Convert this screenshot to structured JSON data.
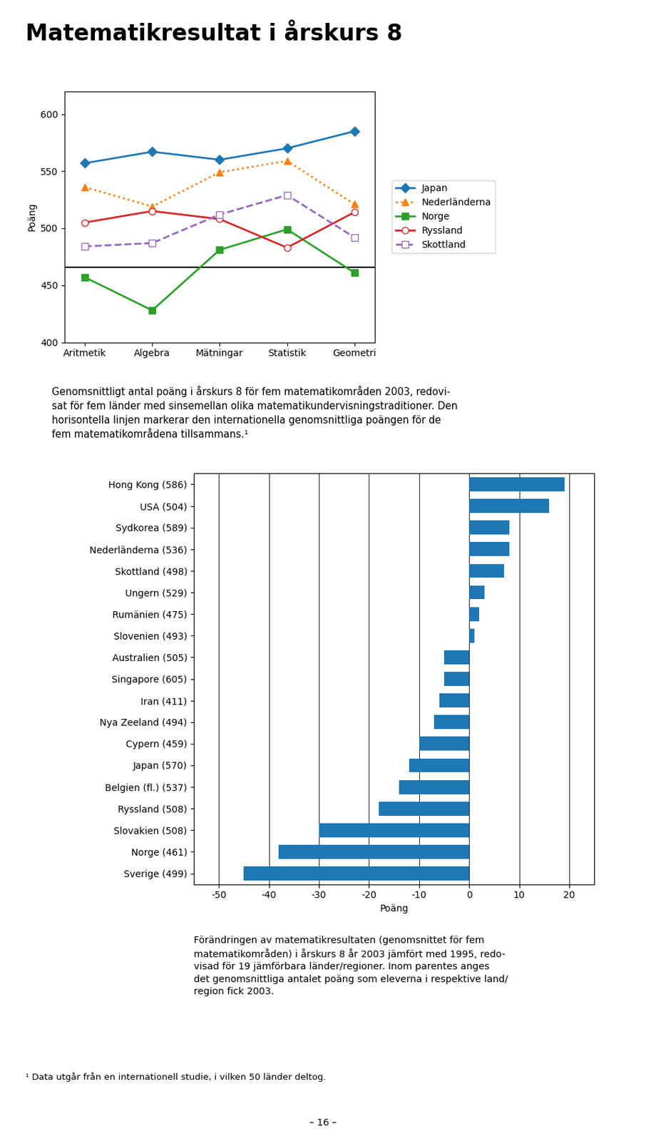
{
  "title": "Matematikresultat i årskurs 8",
  "annotations": [
    "¹ Data utgår från en internationell studie, i vilken 50 länder deltog.",
    "– 16 –"
  ],
  "chart_data": [
    {
      "type": "line",
      "categories": [
        "Aritmetik",
        "Algebra",
        "Mätningar",
        "Statistik",
        "Geometri"
      ],
      "ylabel": "Poäng",
      "ylim": [
        400,
        620
      ],
      "yticks": [
        400,
        450,
        500,
        550,
        600
      ],
      "reference_line": 466,
      "legend": "right",
      "series": [
        {
          "name": "Japan",
          "values": [
            557,
            567,
            560,
            570,
            585
          ],
          "marker": "diamond",
          "line_style": "solid"
        },
        {
          "name": "Nederländerna",
          "values": [
            536,
            519,
            549,
            559,
            521
          ],
          "marker": "triangle",
          "line_style": "dotted"
        },
        {
          "name": "Norge",
          "values": [
            457,
            428,
            481,
            499,
            461
          ],
          "marker": "square",
          "line_style": "solid"
        },
        {
          "name": "Ryssland",
          "values": [
            505,
            515,
            508,
            483,
            514
          ],
          "marker": "open_circle",
          "line_style": "solid"
        },
        {
          "name": "Skottland",
          "values": [
            484,
            487,
            512,
            529,
            492
          ],
          "marker": "open_square",
          "line_style": "dashed"
        }
      ],
      "annotations": [
        "Genomsnittligt antal poäng i årskurs 8 för fem matematikområden 2003, redovi-\nsat för fem länder med sinsemellan olika matematikundervisningstraditioner. Den\nhorisontella linjen markerar den internationella genomsnittliga poängen för de\nfem matematikområdena tillsammans.¹"
      ]
    },
    {
      "type": "bar",
      "orientation": "horizontal",
      "grid": true,
      "categories": [
        "Hong Kong (586)",
        "USA (504)",
        "Sydkorea (589)",
        "Nederländerna (536)",
        "Skottland (498)",
        "Ungern (529)",
        "Rumänien (475)",
        "Slovenien (493)",
        "Australien (505)",
        "Singapore (605)",
        "Iran (411)",
        "Nya Zeeland (494)",
        "Cypern (459)",
        "Japan (570)",
        "Belgien (fl.) (537)",
        "Ryssland (508)",
        "Slovakien (508)",
        "Norge (461)",
        "Sverige (499)"
      ],
      "values": [
        19,
        16,
        8,
        8,
        7,
        3,
        2,
        1,
        -5,
        -5,
        -6,
        -7,
        -10,
        -12,
        -14,
        -18,
        -30,
        -38,
        -45
      ],
      "xlabel": "Poäng",
      "xlim": [
        -55,
        25
      ],
      "xticks": [
        -50,
        -40,
        -30,
        -20,
        -10,
        0,
        10,
        20
      ],
      "annotations": [
        "Förändringen av matematikresultaten (genomsnittet för fem\nmatematikområden) i årskurs 8 år 2003 jämfört med 1995, redo-\nvisad för 19 jämförbara länder/regioner. Inom parentes anges\ndet genomsnittliga antalet poäng som eleverna i respektive land/\nregion fick 2003."
      ]
    }
  ]
}
